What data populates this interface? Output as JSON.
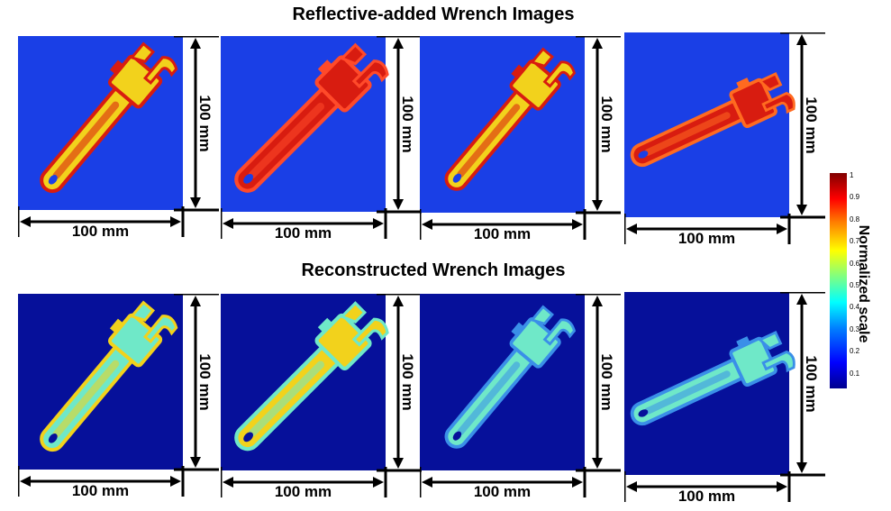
{
  "titles": {
    "top": "Reflective-added Wrench Images",
    "bottom": "Reconstructed Wrench Images"
  },
  "dimension_label": "100 mm",
  "colorbar": {
    "label": "Normalized scale",
    "ticks": [
      "1",
      "0.9",
      "0.8",
      "0.7",
      "0.6",
      "0.5",
      "0.4",
      "0.3",
      "0.2",
      "0.1"
    ],
    "colors": [
      "#00008f",
      "#0000ff",
      "#0080ff",
      "#00ffff",
      "#80ff80",
      "#ffff00",
      "#ff8000",
      "#ff0000",
      "#800000"
    ]
  },
  "colors": {
    "background_top": "#1a3fe6",
    "background_bottom": "#06109a",
    "wrench_red": "#d81c10",
    "wrench_yellow": "#f2d21c",
    "wrench_cyan": "#6fe8c8",
    "wrench_blue": "#3a8fe8"
  }
}
